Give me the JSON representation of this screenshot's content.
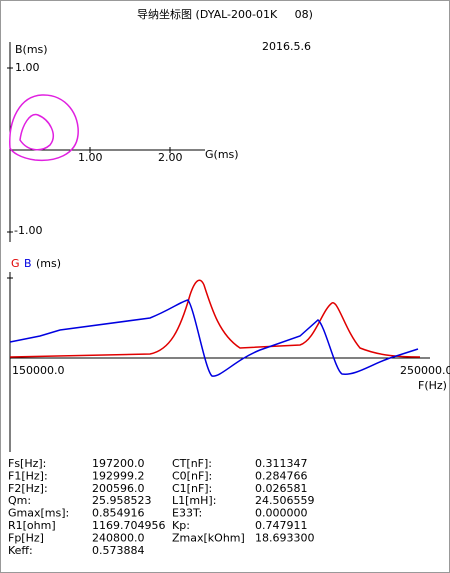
{
  "header": {
    "title": "导纳坐标图 (DYAL-200-01K     08)",
    "date": "2016.5.6"
  },
  "admittance_plot": {
    "y_label": "B(ms)",
    "x_label": "G(ms)",
    "y_ticks": [
      "1.00",
      "-1.00"
    ],
    "x_ticks": [
      "1.00",
      "2.00"
    ]
  },
  "frequency_plot": {
    "label_g": "G",
    "label_b": "B",
    "unit": "(ms)",
    "f_start": "150000.0",
    "f_end": "250000.0",
    "x_label": "F(Hz)"
  },
  "parameters": {
    "rows": [
      [
        "Fs[Hz]:",
        "197200.0",
        "CT[nF]:",
        "0.311347"
      ],
      [
        "F1[Hz]:",
        "192999.2",
        "C0[nF]:",
        "0.284766"
      ],
      [
        "F2[Hz]:",
        "200596.0",
        "C1[nF]:",
        "0.026581"
      ],
      [
        "Qm:",
        "25.958523",
        "L1[mH]:",
        "24.506559"
      ],
      [
        "Gmax[ms]:",
        "0.854916",
        "E33T:",
        "0.000000"
      ],
      [
        "R1[ohm]",
        "1169.704956",
        "Kp:",
        "0.747911"
      ],
      [
        "Fp[Hz]",
        "240800.0",
        "Zmax[kOhm]",
        "18.693300"
      ],
      [
        "Keff:",
        "0.573884"
      ]
    ]
  }
}
